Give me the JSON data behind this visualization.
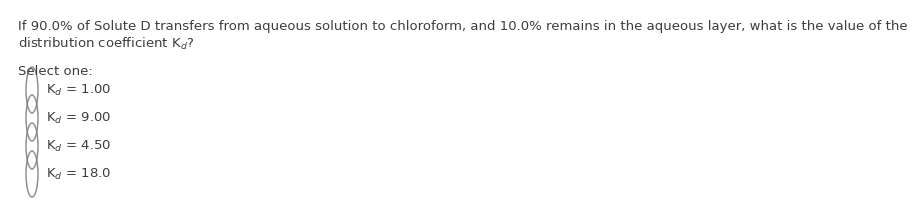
{
  "question_line1": "If 90.0% of Solute D transfers from aqueous solution to chloroform, and 10.0% remains in the aqueous layer, what is the value of the",
  "question_line2": "distribution coefficient K$_d$?",
  "select_label": "Select one:",
  "option_labels": [
    "K$_d$ = 1.00",
    "K$_d$ = 9.00",
    "K$_d$ = 4.50",
    "K$_d$ = 18.0"
  ],
  "background_color": "#ffffff",
  "text_color": "#3d3d3d",
  "font_size": 9.5,
  "circle_color": "#888888",
  "circle_linewidth": 1.0
}
